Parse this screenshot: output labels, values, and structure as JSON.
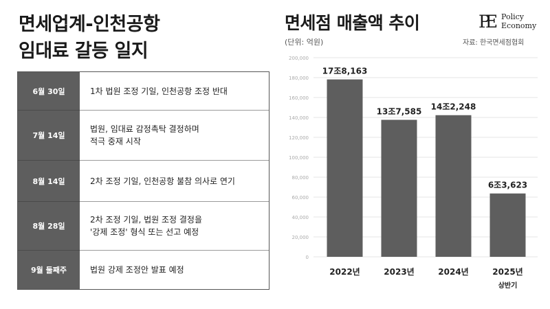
{
  "left": {
    "title_lines": [
      "면세업계-인천공항",
      "임대료 갈등 일지"
    ],
    "timeline": [
      {
        "date": "6월 30일",
        "lines": [
          "1차 법원 조정 기일, 인천공항 조정 반대"
        ]
      },
      {
        "date": "7월 14일",
        "lines": [
          "법원, 임대료 감정촉탁 결정하며",
          "적극 중재 시작"
        ]
      },
      {
        "date": "8월 14일",
        "lines": [
          "2차 조정 기일, 인천공항 불참 의사로 연기"
        ]
      },
      {
        "date": "8월 28일",
        "lines": [
          "2차 조정 기일, 법원 조정 결정을",
          "'강제 조정' 형식 또는 선고 예정"
        ]
      },
      {
        "date": "9월 둘째주",
        "lines": [
          "법원 강제 조정안 발표 예정"
        ]
      }
    ]
  },
  "logo": {
    "mark": "PE",
    "line1": "Policy",
    "line2": "Economy"
  },
  "chart_data": {
    "type": "bar",
    "title": "면세점 매출액 추이",
    "unit_label": "(단위: 억원)",
    "source": "자료: 한국면세점협회",
    "categories": [
      "2022년",
      "2023년",
      "2024년",
      "2025년"
    ],
    "category_sublabels": [
      "",
      "",
      "",
      "상반기"
    ],
    "values": [
      178163,
      137585,
      142248,
      63623
    ],
    "data_labels": [
      "17조8,163",
      "13조7,585",
      "14조2,248",
      "6조3,623"
    ],
    "ylim": [
      0,
      200000
    ],
    "yticks": [
      0,
      20000,
      40000,
      60000,
      80000,
      100000,
      120000,
      140000,
      160000,
      180000,
      200000
    ],
    "ytick_labels": [
      "0",
      "20,000",
      "40,000",
      "60,000",
      "80,000",
      "100,000",
      "120,000",
      "140,000",
      "160,000",
      "180,000",
      "200,000"
    ],
    "bar_color": "#5e5e5e",
    "grid": true
  }
}
